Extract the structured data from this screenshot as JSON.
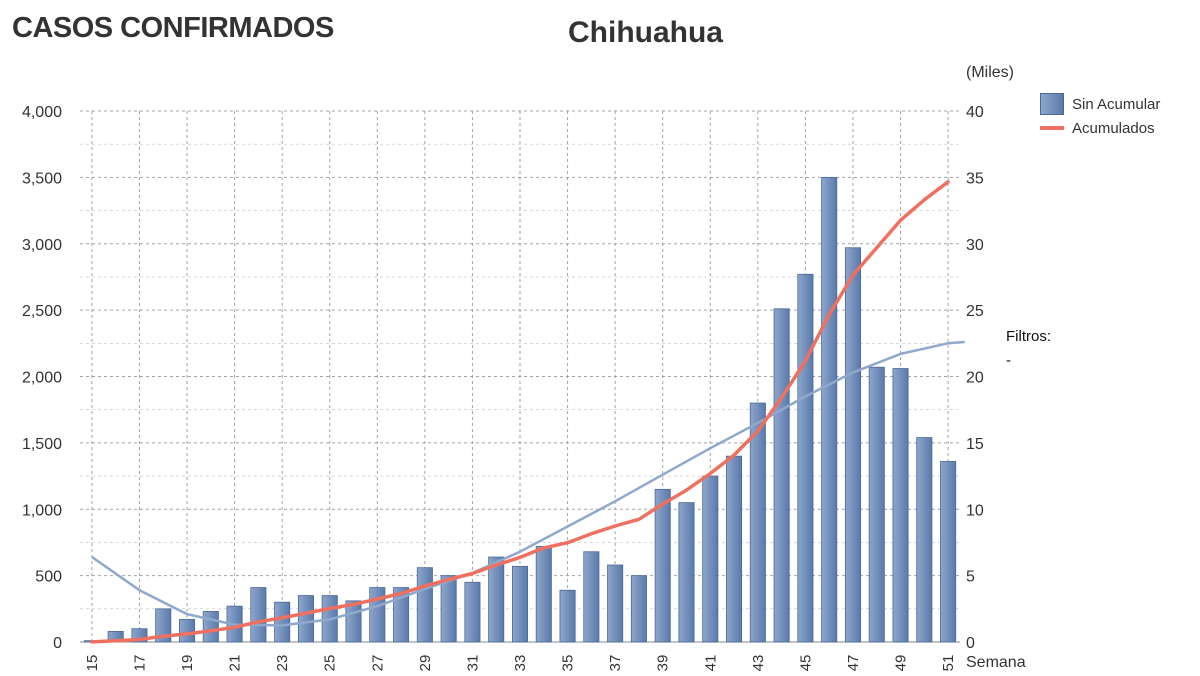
{
  "header": {
    "title": "CASOS CONFIRMADOS",
    "subtitle": "Chihuahua"
  },
  "filters": {
    "label": "Filtros:",
    "value": "-"
  },
  "colors": {
    "bar_light": "#8ea6cb",
    "bar_dark": "#5a7aab",
    "line_accumulated": "#f07060",
    "trend": "#8fa8cc",
    "grid": "#9a9a9a"
  },
  "chart_data": {
    "type": "bar",
    "xlabel": "Semana",
    "right_axis_label": "(Miles)",
    "x": [
      15,
      16,
      17,
      18,
      19,
      20,
      21,
      22,
      23,
      24,
      25,
      26,
      27,
      28,
      29,
      30,
      31,
      32,
      33,
      34,
      35,
      36,
      37,
      38,
      39,
      40,
      41,
      42,
      43,
      44,
      45,
      46,
      47,
      48,
      49,
      50,
      51
    ],
    "x_tick_labels": [
      "15",
      "17",
      "19",
      "21",
      "23",
      "25",
      "27",
      "29",
      "31",
      "33",
      "35",
      "37",
      "39",
      "41",
      "43",
      "45",
      "47",
      "49",
      "51"
    ],
    "ylim_left": [
      0,
      4000
    ],
    "yticks_left": [
      "0",
      "500",
      "1,000",
      "1,500",
      "2,000",
      "2,500",
      "3,000",
      "3,500",
      "4,000"
    ],
    "ylim_right": [
      0,
      40
    ],
    "yticks_right": [
      "0",
      "5",
      "10",
      "15",
      "20",
      "25",
      "30",
      "35",
      "40"
    ],
    "grid": true,
    "legend_position": "top-right",
    "series": [
      {
        "name": "Sin Acumular",
        "type": "bar",
        "axis": "left",
        "values": [
          10,
          80,
          100,
          250,
          170,
          230,
          270,
          410,
          300,
          350,
          350,
          310,
          410,
          410,
          560,
          500,
          450,
          640,
          570,
          720,
          390,
          680,
          580,
          500,
          1150,
          1050,
          1250,
          1400,
          1800,
          2510,
          2770,
          3500,
          2970,
          2070,
          2060,
          1540,
          1360
        ]
      },
      {
        "name": "Acumulados",
        "type": "line",
        "axis": "right",
        "values": [
          0.01,
          0.09,
          0.19,
          0.44,
          0.61,
          0.84,
          1.11,
          1.52,
          1.82,
          2.17,
          2.52,
          2.83,
          3.24,
          3.65,
          4.21,
          4.71,
          5.16,
          5.8,
          6.37,
          7.09,
          7.48,
          8.16,
          8.74,
          9.24,
          10.39,
          11.44,
          12.69,
          14.09,
          15.89,
          18.4,
          21.17,
          24.67,
          27.64,
          29.71,
          31.77,
          33.31,
          34.67
        ]
      }
    ],
    "trend_line": {
      "axis": "left",
      "x": [
        15,
        17,
        19,
        21,
        23,
        25,
        27,
        29,
        31,
        33,
        35,
        37,
        39,
        41,
        43,
        45,
        47,
        49,
        51,
        51.7
      ],
      "values": [
        640,
        390,
        210,
        130,
        125,
        170,
        270,
        400,
        520,
        680,
        870,
        1060,
        1260,
        1460,
        1650,
        1850,
        2030,
        2170,
        2250,
        2260
      ]
    }
  }
}
